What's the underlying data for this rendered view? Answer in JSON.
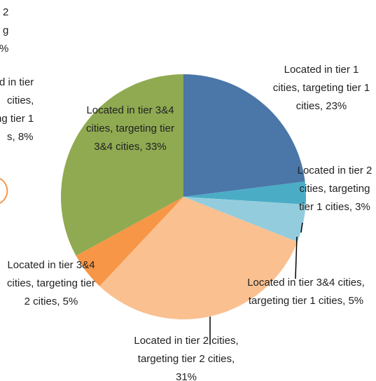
{
  "chart_data": {
    "type": "pie",
    "labels": [
      "Located in tier 1 cities, targeting tier 1 cities, 23%",
      "Located in tier 2 cities, targeting tier 1 cities, 3%",
      "Located in tier 3&4 cities, targeting tier 1 cities, 5%",
      "Located in tier 2 cities, targeting tier 2 cities, 31%",
      "Located in tier 3&4 cities, targeting tier 2 cities, 5%",
      "Located in tier 3&4 cities, targeting tier 3&4 cities, 33%"
    ],
    "values": [
      23,
      3,
      5,
      31,
      5,
      33
    ],
    "colors": [
      "#4a76a8",
      "#4bacc6",
      "#93cddd",
      "#fac090",
      "#f79646",
      "#8faa51"
    ]
  },
  "cropped_fragments": [
    [
      "2",
      "g",
      "%"
    ],
    [
      "d in tier",
      "cities,",
      "ng tier 1",
      "s, 8%"
    ]
  ]
}
